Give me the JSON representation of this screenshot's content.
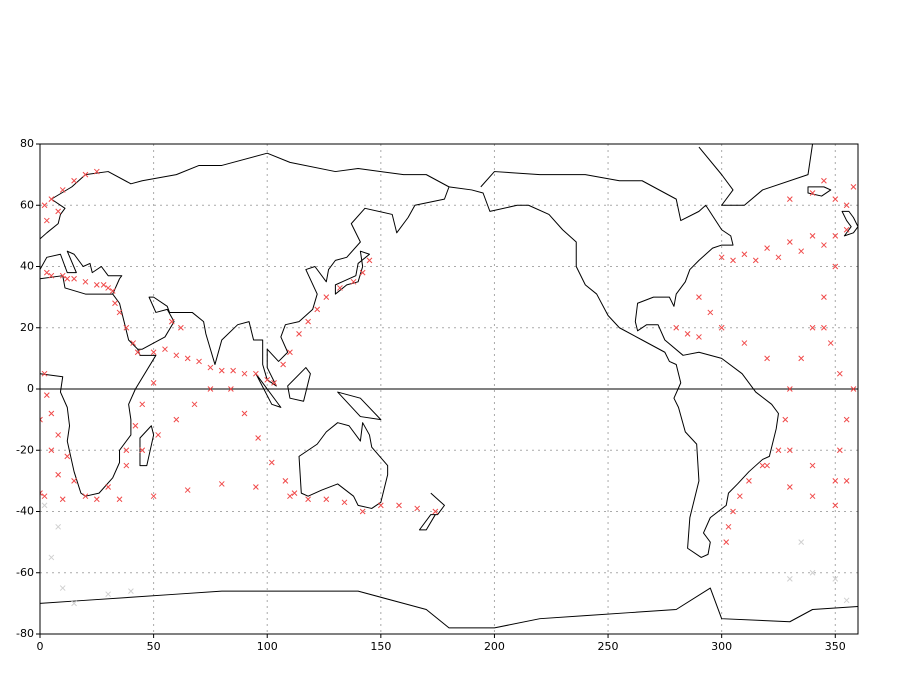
{
  "chart_data": {
    "type": "scatter",
    "xlim": [
      0,
      360
    ],
    "ylim": [
      -80,
      80
    ],
    "xticks": [
      0,
      50,
      100,
      150,
      200,
      250,
      300,
      350
    ],
    "yticks": [
      -80,
      -60,
      -40,
      -20,
      0,
      20,
      40,
      60,
      80
    ],
    "grid": true,
    "series": [
      {
        "color": "#f04a4a",
        "x": [
          5,
          10,
          15,
          20,
          25,
          30,
          32,
          3,
          12,
          28,
          33,
          35,
          38,
          41,
          43,
          50,
          55,
          60,
          65,
          70,
          75,
          80,
          85,
          90,
          95,
          100,
          103,
          107,
          110,
          114,
          118,
          122,
          126,
          132,
          138,
          142,
          145,
          58,
          62,
          84,
          90,
          96,
          102,
          108,
          112,
          118,
          126,
          134,
          142,
          150,
          158,
          166,
          174,
          25,
          20,
          15,
          12,
          8,
          5,
          3,
          2,
          30,
          38,
          45,
          52,
          60,
          68,
          75,
          35,
          50,
          65,
          80,
          95,
          110,
          38,
          42,
          45,
          50,
          0,
          5,
          8,
          2,
          10,
          2,
          5,
          10,
          15,
          20,
          25,
          8,
          3,
          300,
          310,
          320,
          330,
          340,
          350,
          355,
          305,
          315,
          325,
          335,
          345,
          330,
          340,
          350,
          355,
          345,
          358,
          350,
          345,
          340,
          335,
          330,
          328,
          325,
          320,
          290,
          295,
          300,
          310,
          320,
          280,
          285,
          290,
          318,
          312,
          308,
          305,
          303,
          302,
          345,
          348,
          352,
          358,
          355,
          352,
          355,
          350,
          340,
          330,
          330,
          340,
          350,
          0
        ],
        "y": [
          37,
          37,
          36,
          35,
          34,
          33,
          32,
          38,
          36,
          34,
          28,
          25,
          20,
          15,
          12,
          12,
          13,
          11,
          10,
          9,
          7,
          6,
          6,
          5,
          5,
          3,
          2,
          8,
          12,
          18,
          22,
          26,
          30,
          33,
          35,
          38,
          42,
          22,
          20,
          0,
          -8,
          -16,
          -24,
          -30,
          -34,
          -36,
          -36,
          -37,
          -40,
          -38,
          -38,
          -39,
          -40,
          -36,
          -35,
          -30,
          -22,
          -15,
          -8,
          -2,
          5,
          -32,
          -25,
          -20,
          -15,
          -10,
          -5,
          0,
          -36,
          -35,
          -33,
          -31,
          -32,
          -35,
          -20,
          -12,
          -5,
          2,
          -10,
          -20,
          -28,
          -35,
          -36,
          60,
          62,
          65,
          68,
          70,
          71,
          58,
          55,
          43,
          44,
          46,
          48,
          50,
          50,
          52,
          42,
          42,
          43,
          45,
          47,
          62,
          64,
          62,
          60,
          68,
          66,
          40,
          30,
          20,
          10,
          0,
          -10,
          -20,
          -25,
          30,
          25,
          20,
          15,
          10,
          20,
          18,
          17,
          -25,
          -30,
          -35,
          -40,
          -45,
          -50,
          20,
          15,
          5,
          0,
          -10,
          -20,
          -30,
          -38,
          -35,
          -32,
          -20,
          -25,
          -30,
          -34
        ]
      },
      {
        "color": "#d0d0d0",
        "x": [
          5,
          10,
          15,
          30,
          40,
          330,
          340,
          350,
          355,
          335,
          2,
          8
        ],
        "y": [
          -55,
          -65,
          -70,
          -67,
          -66,
          -62,
          -60,
          -62,
          -69,
          -50,
          -38,
          -45
        ]
      }
    ]
  }
}
